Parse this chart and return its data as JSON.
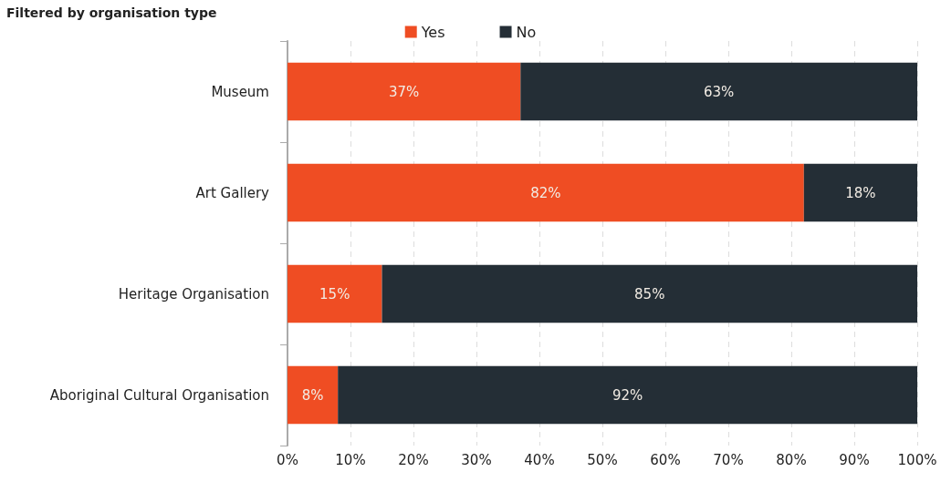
{
  "chart_data": {
    "type": "bar",
    "orientation": "horizontal",
    "stacked": true,
    "title": "Filtered by organisation type",
    "categories": [
      "Museum",
      "Art Gallery",
      "Heritage Organisation",
      "Aboriginal Cultural Organisation"
    ],
    "series": [
      {
        "name": "Yes",
        "color": "#ef4d23",
        "values": [
          37,
          82,
          15,
          8
        ],
        "value_labels": [
          "37%",
          "82%",
          "15%",
          "8%"
        ]
      },
      {
        "name": "No",
        "color": "#242e36",
        "values": [
          63,
          18,
          85,
          92
        ],
        "value_labels": [
          "63%",
          "18%",
          "85%",
          "92%"
        ]
      }
    ],
    "xlim": [
      0,
      100
    ],
    "xticks": [
      {
        "value": 0,
        "label": "0%"
      },
      {
        "value": 10,
        "label": "10%"
      },
      {
        "value": 20,
        "label": "20%"
      },
      {
        "value": 30,
        "label": "30%"
      },
      {
        "value": 40,
        "label": "40%"
      },
      {
        "value": 50,
        "label": "50%"
      },
      {
        "value": 60,
        "label": "60%"
      },
      {
        "value": 70,
        "label": "70%"
      },
      {
        "value": 80,
        "label": "80%"
      },
      {
        "value": 90,
        "label": "90%"
      },
      {
        "value": 100,
        "label": "100%"
      }
    ],
    "grid": "x",
    "legend": "top"
  }
}
